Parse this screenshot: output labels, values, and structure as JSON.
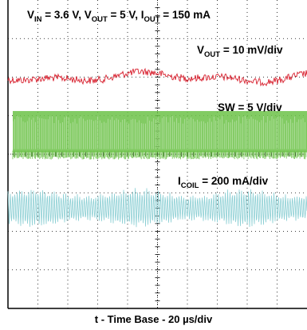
{
  "chart_data": {
    "type": "line",
    "title": "",
    "xlabel": "t - Time Base - 20 µs/div",
    "ylabel": "",
    "x_divisions": 10,
    "y_divisions": 8,
    "conditions": {
      "vin": "3.6 V",
      "vout": "5 V",
      "iout": "150 mA"
    },
    "colors": {
      "vout": "#d8212f",
      "sw": "#6cc248",
      "icoil": "#8ccfd4",
      "grid": "#000000",
      "frame": "#000000"
    },
    "series": [
      {
        "name": "VOUT",
        "scale_value": "10 mV/div",
        "baseline_div": 6.0,
        "kind": "ripple-noise"
      },
      {
        "name": "SW",
        "scale_value": "5 V/div",
        "baseline_div": 4.6,
        "kind": "switching",
        "high_div": 5.12,
        "low_div": 4.05
      },
      {
        "name": "ICOIL",
        "scale_value": "200 mA/div",
        "baseline_div": 2.6,
        "kind": "triangle",
        "amplitude_div": 0.5
      }
    ]
  }
}
